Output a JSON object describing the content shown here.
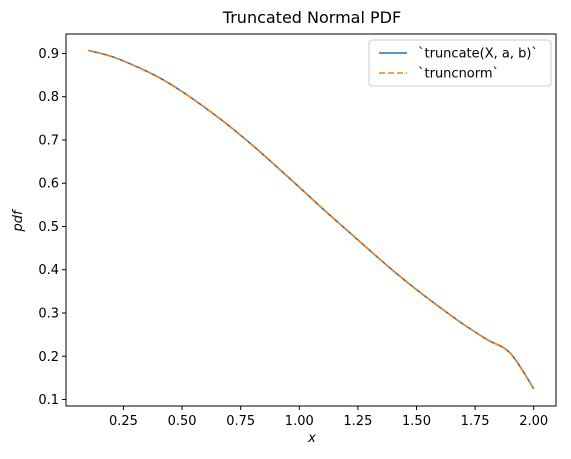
{
  "chart_data": {
    "type": "line",
    "title": "Truncated Normal PDF",
    "xlabel": "x",
    "ylabel": "pdf",
    "xlim": [
      0.005,
      2.095
    ],
    "ylim": [
      0.085,
      0.945
    ],
    "x_ticks": [
      0.25,
      0.5,
      0.75,
      1.0,
      1.25,
      1.5,
      1.75,
      2.0
    ],
    "x_tick_labels": [
      "0.25",
      "0.50",
      "0.75",
      "1.00",
      "1.25",
      "1.50",
      "1.75",
      "2.00"
    ],
    "y_ticks": [
      0.1,
      0.2,
      0.3,
      0.4,
      0.5,
      0.6,
      0.7,
      0.8,
      0.9
    ],
    "y_tick_labels": [
      "0.1",
      "0.2",
      "0.3",
      "0.4",
      "0.5",
      "0.6",
      "0.7",
      "0.8",
      "0.9"
    ],
    "grid": false,
    "legend_position": "top-right",
    "x": [
      0.1,
      0.2,
      0.3,
      0.4,
      0.5,
      0.6,
      0.7,
      0.8,
      0.9,
      1.0,
      1.1,
      1.2,
      1.3,
      1.4,
      1.5,
      1.6,
      1.7,
      1.8,
      1.9,
      2.0
    ],
    "series": [
      {
        "name": "`truncate(X, a, b)`",
        "color": "#1f77b4",
        "style": "solid",
        "values": [
          0.907,
          0.893,
          0.871,
          0.845,
          0.812,
          0.774,
          0.733,
          0.688,
          0.64,
          0.591,
          0.541,
          0.493,
          0.445,
          0.398,
          0.354,
          0.313,
          0.274,
          0.239,
          0.207,
          0.125
        ]
      },
      {
        "name": "`truncnorm`",
        "color": "#ff7f0e",
        "style": "dashed",
        "values": [
          0.907,
          0.893,
          0.871,
          0.845,
          0.812,
          0.774,
          0.733,
          0.688,
          0.64,
          0.591,
          0.541,
          0.493,
          0.445,
          0.398,
          0.354,
          0.313,
          0.274,
          0.239,
          0.207,
          0.125
        ]
      }
    ]
  }
}
